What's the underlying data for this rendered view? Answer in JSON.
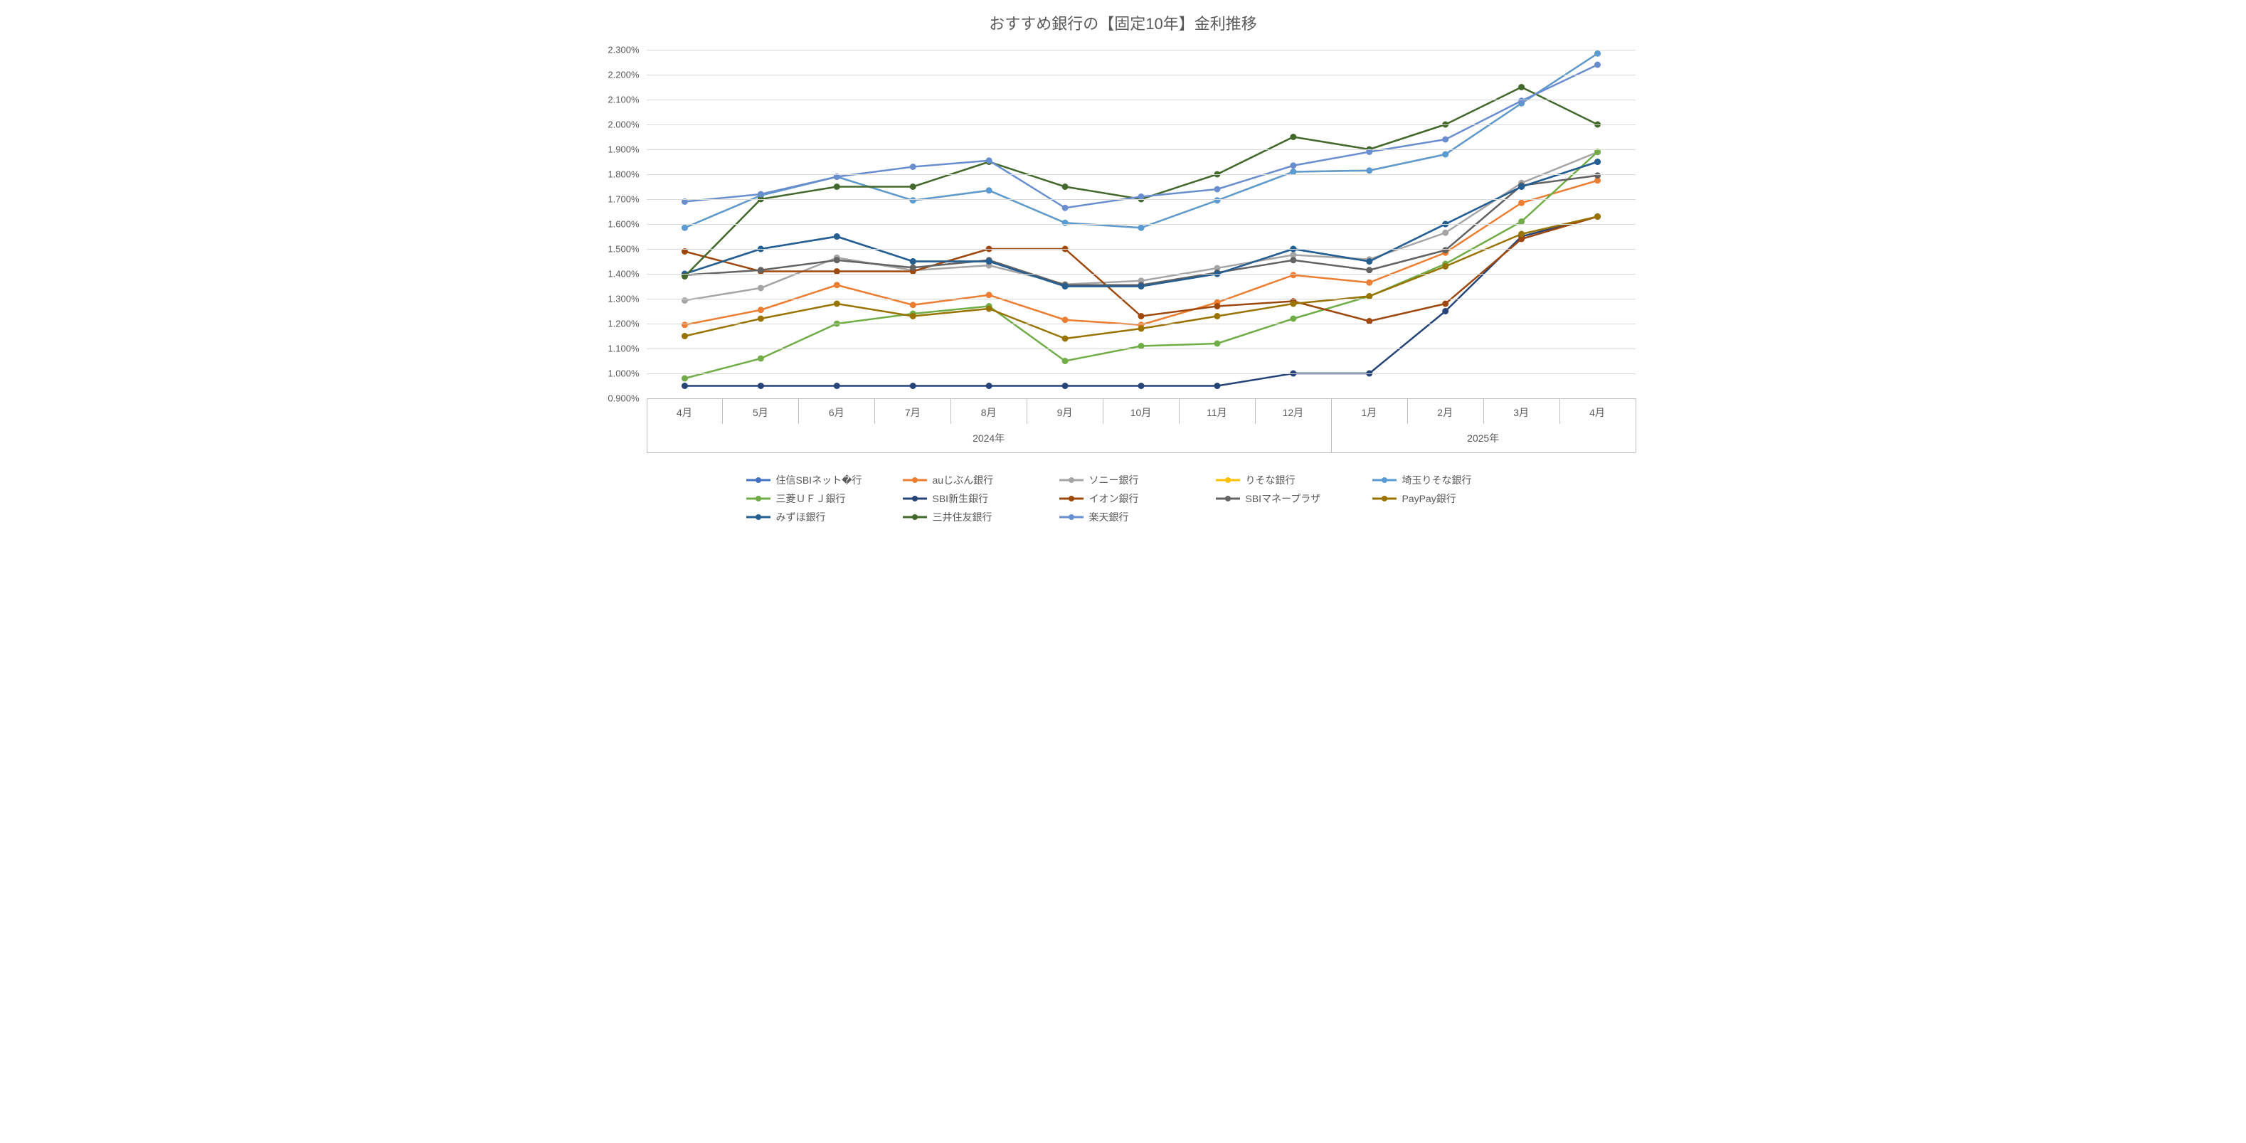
{
  "chart": {
    "type": "line",
    "title": "おすすめ銀行の【固定10年】金利推移",
    "title_fontsize": 22,
    "title_color": "#595959",
    "background_color": "#ffffff",
    "grid_color": "#d9d9d9",
    "axis_line_color": "#bfbfbf",
    "xgrid": false,
    "ygrid": true,
    "y": {
      "unit_suffix": "%",
      "decimals": 3,
      "min": 0.9,
      "max": 2.3,
      "tick_step": 0.1,
      "ticks": [
        0.9,
        1.0,
        1.1,
        1.2,
        1.3,
        1.4,
        1.5,
        1.6,
        1.7,
        1.8,
        1.9,
        2.0,
        2.1,
        2.2,
        2.3
      ],
      "label_fontsize": 13,
      "label_color": "#595959"
    },
    "x": {
      "categories": [
        "4月",
        "5月",
        "6月",
        "7月",
        "8月",
        "9月",
        "10月",
        "11月",
        "12月",
        "1月",
        "2月",
        "3月",
        "4月"
      ],
      "groups": [
        {
          "label": "2024年",
          "start_index": 0,
          "end_index": 8
        },
        {
          "label": "2025年",
          "start_index": 9,
          "end_index": 12
        }
      ],
      "label_fontsize": 14,
      "label_color": "#595959",
      "group_label_fontsize": 14
    },
    "marker": {
      "style": "circle",
      "radius": 4.5
    },
    "line_width": 2.5,
    "series": [
      {
        "name": "住信SBIネット�行",
        "color": "#4472c4",
        "values": [
          1.4,
          1.5,
          1.55,
          1.45,
          1.45,
          1.35,
          1.35,
          1.4,
          1.5,
          1.45,
          1.6,
          1.75,
          1.85
        ]
      },
      {
        "name": "auじぶん銀行",
        "color": "#ed7d31",
        "values": [
          1.195,
          1.255,
          1.355,
          1.275,
          1.315,
          1.215,
          1.195,
          1.285,
          1.395,
          1.365,
          1.485,
          1.685,
          1.775
        ]
      },
      {
        "name": "ソニー銀行",
        "color": "#a5a5a5",
        "values": [
          1.293,
          1.343,
          1.465,
          1.414,
          1.434,
          1.358,
          1.372,
          1.423,
          1.476,
          1.458,
          1.565,
          1.765,
          1.889
        ]
      },
      {
        "name": "りそな銀行",
        "color": "#ffc000",
        "values": [
          1.585,
          1.715,
          1.79,
          1.695,
          1.735,
          1.605,
          1.585,
          1.695,
          1.81,
          1.815,
          1.88,
          2.085,
          2.285
        ]
      },
      {
        "name": "埼玉りそな銀行",
        "color": "#5b9bd5",
        "values": [
          1.585,
          1.715,
          1.79,
          1.695,
          1.735,
          1.605,
          1.585,
          1.695,
          1.81,
          1.815,
          1.88,
          2.085,
          2.285
        ]
      },
      {
        "name": "三菱ＵＦＪ銀行",
        "color": "#70ad47",
        "values": [
          0.98,
          1.06,
          1.2,
          1.24,
          1.27,
          1.05,
          1.11,
          1.12,
          1.22,
          1.31,
          1.44,
          1.61,
          1.89
        ]
      },
      {
        "name": "SBI新生銀行",
        "color": "#264478",
        "values": [
          0.95,
          0.95,
          0.95,
          0.95,
          0.95,
          0.95,
          0.95,
          0.95,
          1.0,
          1.0,
          1.25,
          1.55,
          1.63
        ]
      },
      {
        "name": "イオン銀行",
        "color": "#9e480e",
        "values": [
          1.49,
          1.41,
          1.41,
          1.41,
          1.5,
          1.5,
          1.23,
          1.27,
          1.29,
          1.21,
          1.28,
          1.54,
          1.63
        ]
      },
      {
        "name": "SBIマネープラザ",
        "color": "#636363",
        "values": [
          1.395,
          1.415,
          1.455,
          1.425,
          1.455,
          1.355,
          1.355,
          1.405,
          1.455,
          1.415,
          1.495,
          1.755,
          1.795
        ]
      },
      {
        "name": "PayPay銀行",
        "color": "#997300",
        "values": [
          1.15,
          1.22,
          1.28,
          1.23,
          1.26,
          1.14,
          1.18,
          1.23,
          1.28,
          1.31,
          1.43,
          1.56,
          1.63
        ]
      },
      {
        "name": "みずほ銀行",
        "color": "#255e91",
        "values": [
          1.4,
          1.5,
          1.55,
          1.45,
          1.45,
          1.35,
          1.35,
          1.4,
          1.5,
          1.45,
          1.6,
          1.75,
          1.85
        ]
      },
      {
        "name": "三井住友銀行",
        "color": "#43682b",
        "values": [
          1.39,
          1.7,
          1.75,
          1.75,
          1.85,
          1.75,
          1.7,
          1.8,
          1.95,
          1.9,
          2.0,
          2.15,
          2.0
        ]
      },
      {
        "name": "楽天銀行",
        "color": "#698ed0",
        "values": [
          1.69,
          1.72,
          1.79,
          1.83,
          1.855,
          1.665,
          1.71,
          1.74,
          1.835,
          1.89,
          1.94,
          2.095,
          2.24
        ]
      }
    ]
  }
}
